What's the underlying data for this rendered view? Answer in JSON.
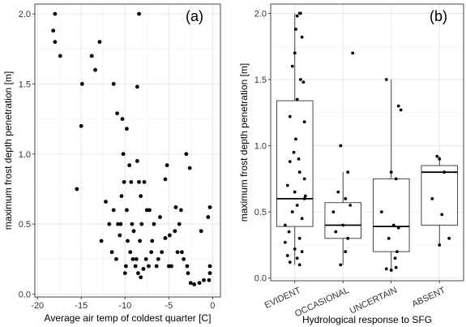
{
  "chart_data": [
    {
      "type": "scatter",
      "panel_tag": "(a)",
      "xlabel": "Average air temp of coldest quarter [C]",
      "ylabel": "maximum frost depth penetration [m]",
      "xlim": [
        -20.3,
        0.9
      ],
      "ylim": [
        -0.02,
        2.07
      ],
      "x_ticks": [
        -20,
        -15,
        -10,
        -5,
        0
      ],
      "y_ticks": [
        0.0,
        0.5,
        1.0,
        1.5,
        2.0
      ],
      "x_tick_labels": [
        "-20",
        "-15",
        "-10",
        "-5",
        "0"
      ],
      "y_tick_labels": [
        "0.0",
        "0.5",
        "1.0",
        "1.5",
        "2.0"
      ],
      "grid": true,
      "points": [
        [
          -18,
          2.0
        ],
        [
          -18.2,
          1.88
        ],
        [
          -18,
          1.8
        ],
        [
          -17.4,
          1.7
        ],
        [
          -12.9,
          1.8
        ],
        [
          -13.8,
          1.7
        ],
        [
          -13.4,
          1.6
        ],
        [
          -14.9,
          1.5
        ],
        [
          -15,
          1.2
        ],
        [
          -15.5,
          0.75
        ],
        [
          -8.4,
          2.0
        ],
        [
          -8.6,
          1.48
        ],
        [
          -11.3,
          1.5
        ],
        [
          -10.9,
          1.29
        ],
        [
          -10.3,
          1.25
        ],
        [
          -9.8,
          1.18
        ],
        [
          -10.2,
          1.0
        ],
        [
          -10.1,
          0.8
        ],
        [
          -9.5,
          0.92
        ],
        [
          -9.3,
          0.8
        ],
        [
          -8.6,
          0.95
        ],
        [
          -8.4,
          0.8
        ],
        [
          -8.2,
          0.7
        ],
        [
          -7.8,
          0.8
        ],
        [
          -7.5,
          0.6
        ],
        [
          -10.4,
          0.7
        ],
        [
          -9.8,
          0.6
        ],
        [
          -10.5,
          0.5
        ],
        [
          -9.2,
          0.5
        ],
        [
          -8.1,
          0.5
        ],
        [
          -7.2,
          0.6
        ],
        [
          -6.7,
          0.5
        ],
        [
          -6.0,
          0.55
        ],
        [
          -5.4,
          0.4
        ],
        [
          -4.9,
          0.42
        ],
        [
          -4.3,
          0.45
        ],
        [
          -3.8,
          0.5
        ],
        [
          -3.6,
          0.6
        ],
        [
          -5.4,
          0.82
        ],
        [
          -5.2,
          0.92
        ],
        [
          -4.2,
          0.62
        ],
        [
          -3.0,
          1.0
        ],
        [
          -2.6,
          0.9
        ],
        [
          -1.3,
          0.45
        ],
        [
          -12.2,
          0.66
        ],
        [
          -11.8,
          0.5
        ],
        [
          -11.5,
          0.3
        ],
        [
          -12.7,
          0.38
        ],
        [
          -11.3,
          0.6
        ],
        [
          -10.8,
          0.5
        ],
        [
          -10.6,
          0.42
        ],
        [
          -9.7,
          0.38
        ],
        [
          -9.4,
          0.3
        ],
        [
          -9.1,
          0.25
        ],
        [
          -8.8,
          0.2
        ],
        [
          -8.5,
          0.15
        ],
        [
          -8.2,
          0.12
        ],
        [
          -7.9,
          0.18
        ],
        [
          -7.6,
          0.25
        ],
        [
          -7.3,
          0.2
        ],
        [
          -9.0,
          0.45
        ],
        [
          -8.3,
          0.38
        ],
        [
          -6.9,
          0.38
        ],
        [
          -6.4,
          0.2
        ],
        [
          -5.8,
          0.3
        ],
        [
          -5.0,
          0.2
        ],
        [
          -4.7,
          0.2
        ],
        [
          -4.0,
          0.3
        ],
        [
          -3.5,
          0.3
        ],
        [
          -3.3,
          0.25
        ],
        [
          -2.9,
          0.2
        ],
        [
          -2.8,
          0.15
        ],
        [
          -2.5,
          0.08
        ],
        [
          -2.1,
          0.07
        ],
        [
          -1.5,
          0.08
        ],
        [
          -1.0,
          0.1
        ],
        [
          -0.5,
          0.55
        ],
        [
          -0.3,
          0.62
        ],
        [
          -0.3,
          0.2
        ],
        [
          -0.3,
          0.15
        ],
        [
          -0.4,
          0.1
        ],
        [
          -6.2,
          0.25
        ],
        [
          -7.0,
          0.3
        ],
        [
          -8.7,
          0.25
        ],
        [
          -9.9,
          0.2
        ],
        [
          -10.0,
          0.15
        ],
        [
          -11.0,
          0.25
        ]
      ]
    },
    {
      "type": "box",
      "panel_tag": "(b)",
      "xlabel": "Hydrological response to SFG",
      "ylabel": "maximum frost depth penetration [m]",
      "ylim": [
        -0.02,
        2.07
      ],
      "y_ticks": [
        0.0,
        0.5,
        1.0,
        1.5,
        2.0
      ],
      "y_tick_labels": [
        "0.0",
        "0.5",
        "1.0",
        "1.5",
        "2.0"
      ],
      "grid": true,
      "categories": [
        "EVIDENT",
        "OCCASIONAL",
        "UNCERTAIN",
        "ABSENT"
      ],
      "boxes": [
        {
          "min": 0.1,
          "q1": 0.39,
          "median": 0.6,
          "q3": 1.34,
          "max": 2.0
        },
        {
          "min": 0.1,
          "q1": 0.3,
          "median": 0.4,
          "q3": 0.57,
          "max": 0.8
        },
        {
          "min": 0.07,
          "q1": 0.2,
          "median": 0.39,
          "q3": 0.75,
          "max": 1.5
        },
        {
          "min": 0.25,
          "q1": 0.4,
          "median": 0.8,
          "q3": 0.85,
          "max": 0.92
        }
      ],
      "points": [
        [
          [
            0.1,
            2.0
          ],
          [
            0.12,
            2.0
          ],
          [
            0.05,
            1.98
          ],
          [
            0.02,
            1.88
          ],
          [
            0.15,
            1.82
          ],
          [
            0.0,
            1.7
          ],
          [
            -0.05,
            1.6
          ],
          [
            0.12,
            1.5
          ],
          [
            0.18,
            1.48
          ],
          [
            0.05,
            1.35
          ],
          [
            -0.1,
            1.22
          ],
          [
            0.2,
            1.18
          ],
          [
            0.02,
            1.05
          ],
          [
            -0.02,
            0.95
          ],
          [
            0.08,
            0.9
          ],
          [
            -0.1,
            0.88
          ],
          [
            0.1,
            0.8
          ],
          [
            0.2,
            0.75
          ],
          [
            -0.15,
            0.7
          ],
          [
            0.0,
            0.65
          ],
          [
            0.22,
            0.62
          ],
          [
            0.2,
            0.6
          ],
          [
            0.05,
            0.55
          ],
          [
            -0.05,
            0.5
          ],
          [
            0.15,
            0.45
          ],
          [
            -0.2,
            0.4
          ],
          [
            -0.12,
            0.35
          ],
          [
            0.1,
            0.3
          ],
          [
            -0.2,
            0.27
          ],
          [
            0.0,
            0.22
          ],
          [
            0.15,
            0.2
          ],
          [
            -0.15,
            0.17
          ],
          [
            0.05,
            0.15
          ],
          [
            -0.1,
            0.12
          ],
          [
            0.1,
            0.1
          ]
        ],
        [
          [
            0.2,
            1.7
          ],
          [
            -0.05,
            1.0
          ],
          [
            0.1,
            0.8
          ],
          [
            -0.1,
            0.65
          ],
          [
            0.05,
            0.6
          ],
          [
            0.15,
            0.55
          ],
          [
            -0.2,
            0.5
          ],
          [
            0.0,
            0.4
          ],
          [
            -0.15,
            0.35
          ],
          [
            0.1,
            0.3
          ],
          [
            0.05,
            0.2
          ],
          [
            -0.05,
            0.1
          ]
        ],
        [
          [
            -0.1,
            1.5
          ],
          [
            0.15,
            1.3
          ],
          [
            0.2,
            1.27
          ],
          [
            0.0,
            0.8
          ],
          [
            0.1,
            0.75
          ],
          [
            -0.2,
            0.5
          ],
          [
            0.05,
            0.4
          ],
          [
            0.15,
            0.38
          ],
          [
            -0.05,
            0.3
          ],
          [
            0.12,
            0.2
          ],
          [
            0.08,
            0.15
          ],
          [
            0.1,
            0.08
          ],
          [
            -0.1,
            0.07
          ],
          [
            0.0,
            0.06
          ]
        ],
        [
          [
            -0.05,
            0.92
          ],
          [
            0.0,
            0.9
          ],
          [
            0.1,
            0.8
          ],
          [
            -0.15,
            0.6
          ],
          [
            0.05,
            0.48
          ],
          [
            0.2,
            0.3
          ],
          [
            0.0,
            0.25
          ]
        ]
      ]
    }
  ]
}
